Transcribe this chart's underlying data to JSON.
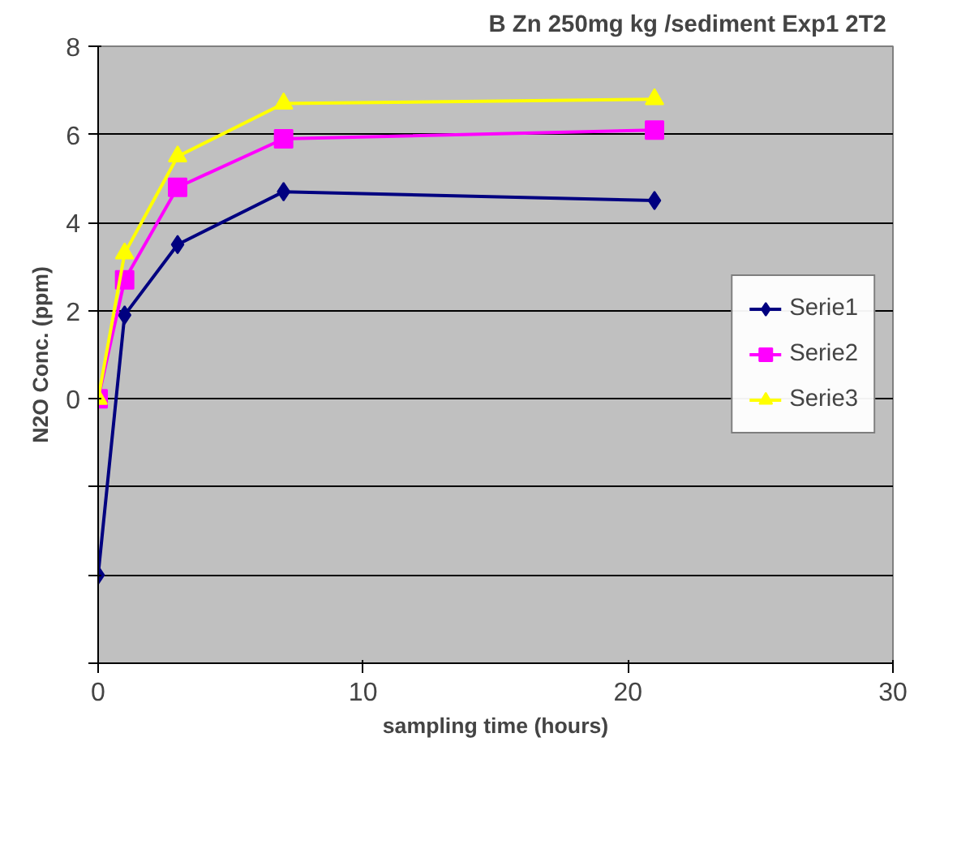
{
  "chart_data": {
    "type": "line",
    "title": "B Zn 250mg kg /sediment Exp1  2T2",
    "xlabel": "sampling time (hours)",
    "ylabel": "N2O Conc. (ppm)",
    "x": [
      0,
      1,
      3,
      7,
      21
    ],
    "series": [
      {
        "name": "Serie1",
        "color": "#000080",
        "marker": "diamond",
        "values": [
          -4,
          1.9,
          3.5,
          4.7,
          4.5
        ]
      },
      {
        "name": "Serie2",
        "color": "#ff00ff",
        "marker": "square",
        "values": [
          0,
          2.7,
          4.8,
          5.9,
          6.1
        ]
      },
      {
        "name": "Serie3",
        "color": "#ffff00",
        "marker": "triangle",
        "values": [
          0,
          3.3,
          5.5,
          6.7,
          6.8
        ]
      }
    ],
    "xlim": [
      0,
      30
    ],
    "xticks": [
      0,
      10,
      20,
      30
    ],
    "ylim": [
      -6,
      8
    ],
    "yticks": [
      {
        "value": -6,
        "label": null
      },
      {
        "value": -4,
        "label": null
      },
      {
        "value": -2,
        "label": null
      },
      0,
      2,
      4,
      6,
      8
    ],
    "grid": "y",
    "legend": "right",
    "line_style": "solid"
  }
}
